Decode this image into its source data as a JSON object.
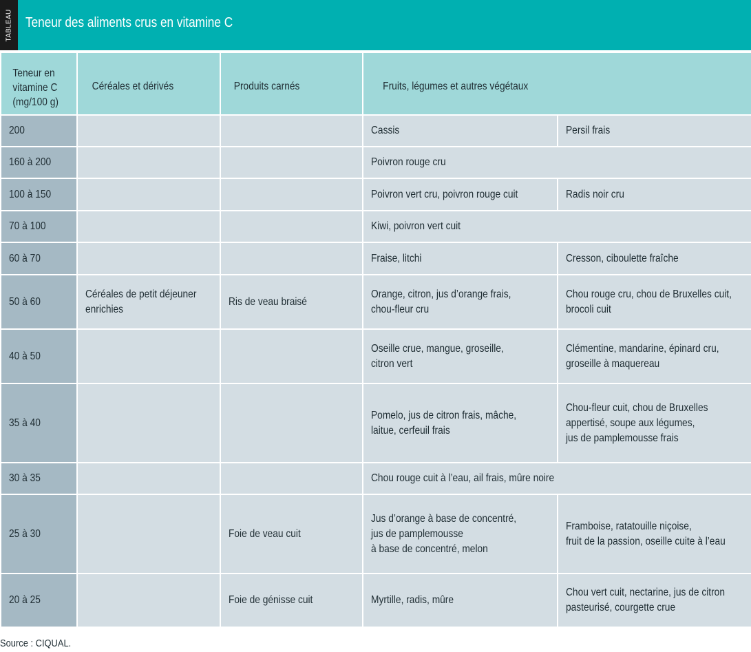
{
  "header": {
    "tag": "TABLEAU",
    "title": "Teneur des aliments crus en vitamine C"
  },
  "table": {
    "columns": [
      "Teneur en vitamine C (mg/100 g)",
      "Céréales et dérivés",
      "Produits carnés",
      "Fruits, légumes et autres végétaux"
    ],
    "col1_lines": [
      "Teneur en",
      "vitamine C",
      "(mg/100 g)"
    ],
    "rows": [
      {
        "range": "200",
        "cereales": [],
        "carnes": [],
        "fruits": [
          "Cassis"
        ],
        "fruits2": [
          "Persil frais"
        ]
      },
      {
        "range": "160 à 200",
        "cereales": [],
        "carnes": [],
        "fruits": [
          "Poivron rouge cru"
        ],
        "fruits2": null
      },
      {
        "range": "100 à 150",
        "cereales": [],
        "carnes": [],
        "fruits": [
          "Poivron vert cru, poivron rouge cuit"
        ],
        "fruits2": [
          "Radis noir cru"
        ]
      },
      {
        "range": "70 à 100",
        "cereales": [],
        "carnes": [],
        "fruits": [
          "Kiwi, poivron vert cuit"
        ],
        "fruits2": null
      },
      {
        "range": "60 à 70",
        "cereales": [],
        "carnes": [],
        "fruits": [
          "Fraise, litchi"
        ],
        "fruits2": [
          "Cresson, ciboulette fraîche"
        ]
      },
      {
        "range": "50 à 60",
        "cereales": [
          "Céréales de petit déjeuner",
          "enrichies"
        ],
        "carnes": [
          "Ris de veau braisé"
        ],
        "fruits": [
          "Orange, citron, jus d’orange frais,",
          "chou-fleur cru"
        ],
        "fruits2": [
          "Chou rouge cru, chou de Bruxelles cuit,",
          "brocoli cuit"
        ]
      },
      {
        "range": "40 à 50",
        "cereales": [],
        "carnes": [],
        "fruits": [
          "Oseille crue, mangue, groseille,",
          "citron vert"
        ],
        "fruits2": [
          "Clémentine, mandarine, épinard cru,",
          "groseille à maquereau"
        ]
      },
      {
        "range": "35 à 40",
        "cereales": [],
        "carnes": [],
        "fruits": [
          "Pomelo, jus de citron frais, mâche,",
          "laitue, cerfeuil frais"
        ],
        "fruits2": [
          "Chou-fleur cuit, chou de Bruxelles",
          "appertisé, soupe aux légumes,",
          "jus de pamplemousse frais"
        ]
      },
      {
        "range": "30 à 35",
        "cereales": [],
        "carnes": [],
        "fruits": [
          "Chou rouge cuit à l’eau, ail frais, mûre noire"
        ],
        "fruits2": null
      },
      {
        "range": "25 à 30",
        "cereales": [],
        "carnes": [
          "Foie de veau cuit"
        ],
        "fruits": [
          "Jus d’orange à base de concentré,",
          "jus de pamplemousse",
          "à base de concentré, melon"
        ],
        "fruits2": [
          "Framboise, ratatouille niçoise,",
          "fruit de la passion, oseille cuite à l’eau"
        ]
      },
      {
        "range": "20 à 25",
        "cereales": [],
        "carnes": [
          "Foie de génisse cuit"
        ],
        "fruits": [
          "Myrtille, radis, mûre"
        ],
        "fruits2": [
          "Chou vert cuit, nectarine, jus de citron",
          "pasteurisé, courgette crue"
        ]
      }
    ]
  },
  "source": "Source : CIQUAL.",
  "colors": {
    "title_bar": "#00b0b1",
    "header_bg": "#9fd8d9",
    "range_bg": "#a5b9c4",
    "cell_bg": "#d3dde3",
    "tag_bg": "#1b1b1b"
  }
}
